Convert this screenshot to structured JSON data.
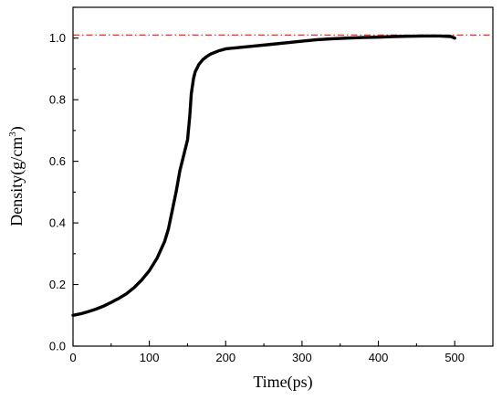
{
  "chart_data": {
    "type": "line",
    "xlabel": "Time(ps)",
    "ylabel_main": "Density(g/cm",
    "ylabel_sup": "3",
    "ylabel_close": ")",
    "xlim": [
      0,
      550
    ],
    "ylim": [
      0.0,
      1.1
    ],
    "x_ticks": [
      0,
      100,
      200,
      300,
      400,
      500
    ],
    "x_tick_labels": [
      "0",
      "100",
      "200",
      "300",
      "400",
      "500"
    ],
    "y_ticks": [
      0.0,
      0.2,
      0.4,
      0.6,
      0.8,
      1.0
    ],
    "y_tick_labels": [
      "0.0",
      "0.2",
      "0.4",
      "0.6",
      "0.8",
      "1.0"
    ],
    "reference_line": {
      "y": 1.01,
      "color": "#cc2222",
      "style": "dash-dot"
    },
    "grid": false,
    "legend": "none",
    "series": [
      {
        "color": "#000000",
        "x": [
          0,
          10,
          20,
          30,
          40,
          50,
          60,
          70,
          80,
          90,
          100,
          110,
          120,
          125,
          130,
          135,
          140,
          145,
          150,
          153,
          155,
          158,
          160,
          165,
          170,
          175,
          180,
          190,
          200,
          220,
          240,
          260,
          280,
          300,
          320,
          340,
          360,
          380,
          400,
          420,
          440,
          460,
          480,
          495,
          500
        ],
        "y": [
          0.1,
          0.105,
          0.112,
          0.12,
          0.13,
          0.142,
          0.155,
          0.17,
          0.19,
          0.215,
          0.245,
          0.285,
          0.34,
          0.38,
          0.44,
          0.5,
          0.57,
          0.62,
          0.67,
          0.75,
          0.82,
          0.87,
          0.89,
          0.915,
          0.93,
          0.94,
          0.948,
          0.958,
          0.965,
          0.97,
          0.975,
          0.98,
          0.985,
          0.99,
          0.995,
          0.998,
          1.0,
          1.002,
          1.003,
          1.005,
          1.006,
          1.007,
          1.007,
          1.005,
          1.0
        ]
      }
    ]
  }
}
